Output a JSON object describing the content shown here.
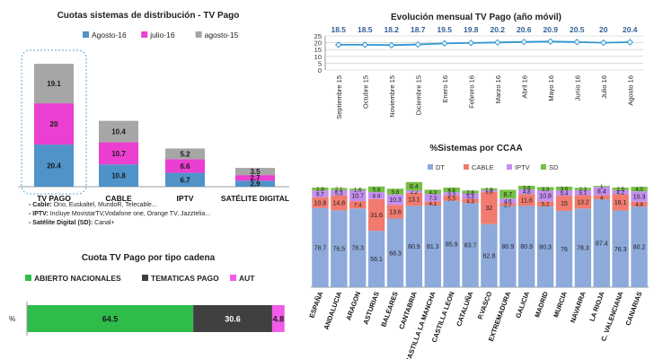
{
  "panel_tl": {
    "title": "Cuotas sistemas de distribución  - TV Pago",
    "notes": [
      {
        "head": "- Cable:",
        "text": " Ono, Euskaltel, MundoR, Telecable..."
      },
      {
        "head": "- IPTV:",
        "text": " Incluye MovistarTV,Vodafone one, Orange TV, Jazztelia..."
      },
      {
        "head": "- Satélite Digital (SD):",
        "text": " Canal+"
      }
    ]
  },
  "panel_bl": {
    "title": "Cuota TV Pago por tipo cadena",
    "row_label": "%"
  },
  "panel_tr": {
    "title": "Evolución mensual TV Pago (año móvil)"
  },
  "panel_br": {
    "title": "%Sistemas  por CCAA"
  },
  "colors": {
    "agosto16": "#4f93c9",
    "julio16": "#ea3fd0",
    "agosto15": "#a6a6a6",
    "line": "#2e97d2",
    "dt": "#8eaadb",
    "cable": "#f07b6e",
    "iptv": "#c58ff0",
    "sd": "#76c043",
    "abierto": "#2ebd4a",
    "tematicas": "#404040",
    "aut": "#f25ce8"
  },
  "chart_data": [
    {
      "type": "bar",
      "title": "Cuotas sistemas de distribución  - TV Pago",
      "categories": [
        "TV PAGO",
        "CABLE",
        "IPTV",
        "SATÉLITE DIGITAL"
      ],
      "series": [
        {
          "name": "Agosto-16",
          "values": [
            20.4,
            10.8,
            6.7,
            2.9
          ]
        },
        {
          "name": "julio-16",
          "values": [
            20,
            10.7,
            6.6,
            2.7
          ]
        },
        {
          "name": "agosto-15",
          "values": [
            19.1,
            10.4,
            5.2,
            3.5
          ]
        }
      ],
      "stacked": true,
      "legend": "top"
    },
    {
      "type": "line",
      "title": "Evolución mensual TV Pago (año móvil)",
      "categories": [
        "Septiembre 15",
        "Octubre 15",
        "Noviembre 15",
        "Diciembre 15",
        "Enero 16",
        "Febrero 16",
        "Marzo 16",
        "Abril 16",
        "Mayo 16",
        "Junio 16",
        "Julio 16",
        "Agosto 16"
      ],
      "values": [
        18.5,
        18.5,
        18.2,
        18.7,
        19.5,
        19.8,
        20.2,
        20.6,
        20.9,
        20.5,
        20,
        20.4
      ],
      "yticks": [
        0,
        5,
        10,
        15,
        20,
        25
      ],
      "ylim": [
        0,
        25
      ],
      "grid": true
    },
    {
      "type": "bar",
      "title": "Cuota TV Pago por tipo cadena",
      "orientation": "horizontal",
      "stacked": true,
      "categories": [
        "%"
      ],
      "series": [
        {
          "name": "ABIERTO NACIONALES",
          "values": [
            64.5
          ]
        },
        {
          "name": "TEMATICAS PAGO",
          "values": [
            30.6
          ]
        },
        {
          "name": "AUT",
          "values": [
            4.8
          ]
        }
      ],
      "legend": "top"
    },
    {
      "type": "bar",
      "title": "%Sistemas  por CCAA",
      "stacked": true,
      "categories": [
        "ESPAÑA",
        "ANDALUCIA",
        "ARAGON",
        "ASTURIAS",
        "BALEARES",
        "CANTABRIA",
        "CASTILLA LA MANCHA",
        "CASTILLA LEON",
        "CATALUÑA",
        "P.VASCO",
        "EXTREMADURA",
        "GALICIA",
        "MADRID",
        "MURCIA",
        "NAVARRA",
        "LA RIOJA",
        "C. VALENCIANA",
        "CANARIAS"
      ],
      "series": [
        {
          "name": "DT",
          "values": [
            78.7,
            76.5,
            78.3,
            56.1,
            68.3,
            80.9,
            81.3,
            85.9,
            83.7,
            62.8,
            80.9,
            80.9,
            80.3,
            76,
            78.3,
            87.4,
            76.3,
            80.2
          ]
        },
        {
          "name": "CABLE",
          "values": [
            10.8,
            14.8,
            7.4,
            31.6,
            13.6,
            13.1,
            4.1,
            5.3,
            4.3,
            32,
            2.7,
            11.6,
            5.2,
            15,
            13.2,
            4,
            16.1,
            4.9
          ]
        },
        {
          "name": "IPTV",
          "values": [
            6.7,
            5.3,
            10.7,
            6.9,
            10.3,
            2.2,
            7.3,
            3.3,
            5.3,
            1.8,
            4.6,
            4.8,
            10.8,
            5.4,
            5.1,
            8.4,
            4.2,
            10.3
          ]
        },
        {
          "name": "SD",
          "values": [
            2.9,
            2.1,
            1.6,
            5.6,
            5.8,
            8.4,
            4.3,
            4.6,
            2.8,
            1.8,
            8.7,
            3.6,
            3.3,
            3.6,
            2.3,
            1,
            2.5,
            4.5
          ]
        }
      ],
      "ylim": [
        0,
        100
      ],
      "legend": "top"
    }
  ]
}
